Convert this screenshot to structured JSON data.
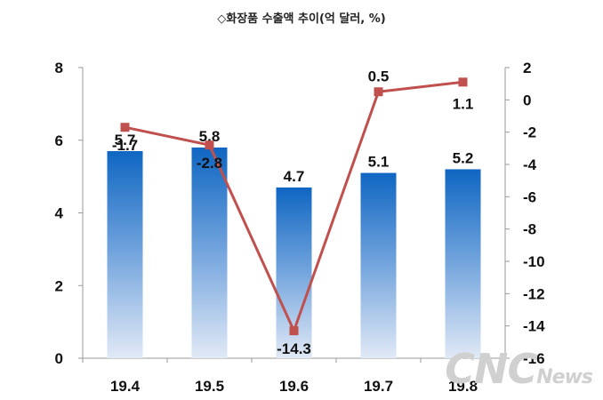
{
  "chart_data": {
    "type": "bar",
    "title": "◇화장품 수출액 추이(억 달러, %)",
    "categories": [
      "19.4",
      "19.5",
      "19.6",
      "19.7",
      "19.8"
    ],
    "ylim": [
      0,
      8
    ],
    "y_ticks": [
      0,
      2,
      4,
      6,
      8
    ],
    "y2lim": [
      -16,
      2
    ],
    "y2_ticks": [
      2,
      0,
      -2,
      -4,
      -6,
      -8,
      -10,
      -12,
      -14,
      -16
    ],
    "grid": false,
    "series": [
      {
        "type": "bar",
        "values": [
          5.7,
          5.8,
          4.7,
          5.1,
          5.2
        ],
        "labels": [
          "5.7",
          "5.8",
          "4.7",
          "5.1",
          "5.2"
        ],
        "axis": "left",
        "color": "#1a6fc4"
      },
      {
        "type": "line",
        "values": [
          -1.7,
          -2.8,
          -14.3,
          0.5,
          1.1
        ],
        "labels": [
          "-1.7",
          "-2.8",
          "-14.3",
          "0.5",
          "1.1"
        ],
        "axis": "right",
        "color": "#c0504d"
      }
    ]
  },
  "watermark": {
    "big": "CNC",
    "small": "News"
  }
}
